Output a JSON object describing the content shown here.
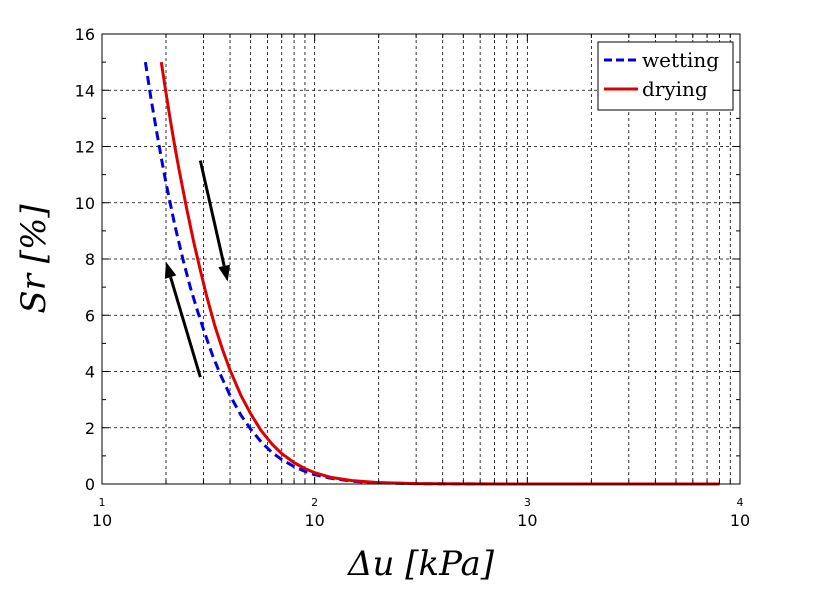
{
  "chart_data": {
    "type": "line",
    "title": "",
    "xlabel": "Δu [kPa]",
    "ylabel": "Sr  [%]",
    "xscale": "log",
    "xlim": [
      10,
      10000
    ],
    "ylim": [
      0,
      16
    ],
    "x_ticks": [
      {
        "base": "10",
        "exp": "1"
      },
      {
        "base": "10",
        "exp": "2"
      },
      {
        "base": "10",
        "exp": "3"
      },
      {
        "base": "10",
        "exp": "4"
      }
    ],
    "y_ticks": [
      "0",
      "2",
      "4",
      "6",
      "8",
      "10",
      "12",
      "14",
      "16"
    ],
    "grid": true,
    "grid_style": "dashed",
    "legend_position": "top-right",
    "series": [
      {
        "name": "wetting",
        "color": "#0000dd",
        "style": "dashed",
        "points": [
          [
            16,
            15.0
          ],
          [
            17,
            13.7
          ],
          [
            18,
            12.6
          ],
          [
            19,
            11.6
          ],
          [
            20,
            10.7
          ],
          [
            22,
            9.2
          ],
          [
            24,
            8.0
          ],
          [
            26,
            7.0
          ],
          [
            28,
            6.2
          ],
          [
            30,
            5.5
          ],
          [
            33,
            4.6
          ],
          [
            36,
            3.9
          ],
          [
            40,
            3.15
          ],
          [
            45,
            2.45
          ],
          [
            50,
            1.95
          ],
          [
            56,
            1.5
          ],
          [
            63,
            1.12
          ],
          [
            70,
            0.87
          ],
          [
            80,
            0.62
          ],
          [
            90,
            0.45
          ],
          [
            100,
            0.33
          ],
          [
            120,
            0.2
          ],
          [
            150,
            0.1
          ],
          [
            200,
            0.04
          ],
          [
            300,
            0.012
          ],
          [
            500,
            0.003
          ],
          [
            1000,
            0.0006
          ],
          [
            3000,
            0.0001
          ],
          [
            8000,
            0.0
          ]
        ]
      },
      {
        "name": "drying",
        "color": "#dd0000",
        "style": "solid",
        "points": [
          [
            19,
            15.0
          ],
          [
            20,
            13.9
          ],
          [
            21,
            12.9
          ],
          [
            22,
            12.0
          ],
          [
            23,
            11.2
          ],
          [
            25,
            9.8
          ],
          [
            27,
            8.6
          ],
          [
            29,
            7.6
          ],
          [
            31,
            6.7
          ],
          [
            34,
            5.6
          ],
          [
            37,
            4.75
          ],
          [
            40,
            4.05
          ],
          [
            45,
            3.15
          ],
          [
            50,
            2.5
          ],
          [
            56,
            1.9
          ],
          [
            63,
            1.42
          ],
          [
            70,
            1.08
          ],
          [
            80,
            0.76
          ],
          [
            90,
            0.55
          ],
          [
            100,
            0.4
          ],
          [
            120,
            0.23
          ],
          [
            150,
            0.12
          ],
          [
            200,
            0.05
          ],
          [
            300,
            0.015
          ],
          [
            500,
            0.004
          ],
          [
            1000,
            0.0008
          ],
          [
            3000,
            0.0001
          ],
          [
            8000,
            0.0
          ]
        ]
      }
    ],
    "annotations": [
      {
        "type": "arrow",
        "direction": "down",
        "from": [
          29,
          11.5
        ],
        "to": [
          39,
          7.2
        ]
      },
      {
        "type": "arrow",
        "direction": "up",
        "from": [
          29,
          3.8
        ],
        "to": [
          20,
          7.9
        ]
      }
    ]
  }
}
